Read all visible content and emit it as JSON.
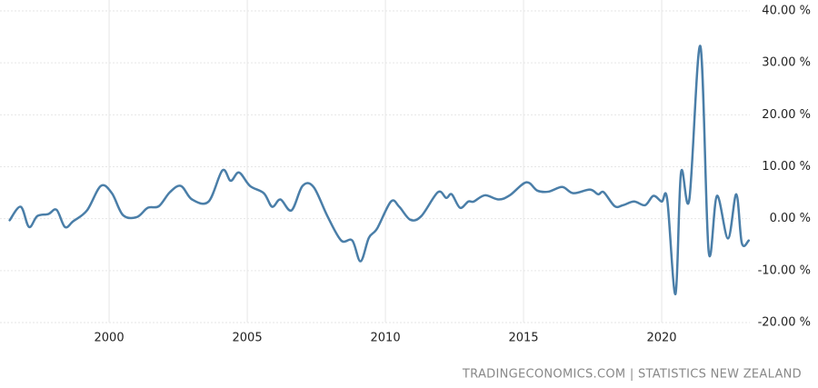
{
  "chart_data": {
    "type": "line",
    "source": "TRADINGECONOMICS.COM | STATISTICS NEW ZEALAND",
    "xlim": [
      1996.05,
      2023.19
    ],
    "xticks": [
      2000,
      2005,
      2010,
      2015,
      2020
    ],
    "ylim": [
      -20,
      40
    ],
    "yticks": [
      {
        "value": 40,
        "label": "40.00 %"
      },
      {
        "value": 30,
        "label": "30.00 %"
      },
      {
        "value": 20,
        "label": "20.00 %"
      },
      {
        "value": 10,
        "label": "10.00 %"
      },
      {
        "value": 0,
        "label": "0.00 %"
      },
      {
        "value": -10,
        "label": "-10.00 %"
      },
      {
        "value": -20,
        "label": "-20.00 %"
      }
    ],
    "grid": true,
    "x": [
      1996.4,
      1996.8,
      1997.1,
      1997.4,
      1997.8,
      1998.1,
      1998.4,
      1998.7,
      1999.2,
      1999.7,
      2000.1,
      2000.5,
      2001.0,
      2001.4,
      2001.8,
      2002.2,
      2002.6,
      2003.0,
      2003.6,
      2004.1,
      2004.4,
      2004.7,
      2005.1,
      2005.6,
      2005.9,
      2006.2,
      2006.6,
      2007.0,
      2007.4,
      2007.9,
      2008.4,
      2008.8,
      2009.1,
      2009.4,
      2009.7,
      2010.2,
      2010.5,
      2010.9,
      2011.3,
      2011.9,
      2012.2,
      2012.4,
      2012.7,
      2013.0,
      2013.2,
      2013.6,
      2014.1,
      2014.5,
      2015.1,
      2015.5,
      2015.9,
      2016.4,
      2016.8,
      2017.4,
      2017.7,
      2017.9,
      2018.3,
      2018.6,
      2019.0,
      2019.4,
      2019.7,
      2020.0,
      2020.2,
      2020.5,
      2020.7,
      2021.0,
      2021.4,
      2021.7,
      2022.0,
      2022.4,
      2022.7,
      2022.9,
      2023.15
    ],
    "series": [
      {
        "color": "#4a7ea8",
        "values": [
          -0.3,
          2.3,
          -1.6,
          0.5,
          0.9,
          1.7,
          -1.6,
          -0.5,
          1.6,
          6.3,
          4.9,
          0.7,
          0.3,
          2.1,
          2.4,
          5.1,
          6.3,
          3.7,
          3.3,
          9.3,
          7.3,
          8.9,
          6.3,
          4.9,
          2.3,
          3.7,
          1.6,
          6.3,
          6.1,
          0.5,
          -4.2,
          -4.2,
          -8.2,
          -3.7,
          -1.9,
          3.3,
          2.3,
          -0.2,
          0.5,
          5.1,
          4.0,
          4.7,
          2.1,
          3.3,
          3.3,
          4.5,
          3.7,
          4.5,
          7.0,
          5.4,
          5.2,
          6.1,
          4.9,
          5.6,
          4.7,
          5.1,
          2.4,
          2.6,
          3.3,
          2.6,
          4.4,
          3.3,
          3.7,
          -14.5,
          8.9,
          3.7,
          33.2,
          -6.3,
          4.4,
          -3.8,
          4.7,
          -4.7,
          -4.2
        ]
      }
    ]
  }
}
